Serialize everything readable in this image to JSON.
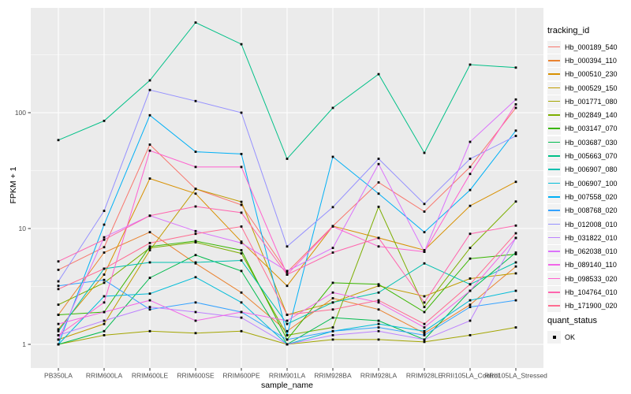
{
  "figure": {
    "background": "#FFFFFF",
    "panel_background": "#EBEBEB",
    "grid_color": "#FFFFFF",
    "tick_label_color": "#4D4D4D",
    "tick_mark_color": "#333333",
    "point_color": "#000000",
    "legend_key_background": "#F2F2F2"
  },
  "chart_data": {
    "type": "line",
    "title": "",
    "xlabel": "sample_name",
    "ylabel": "FPKM + 1",
    "y_scale": "log10",
    "ylim": [
      0.63,
      800
    ],
    "y_ticks": [
      1,
      10,
      100
    ],
    "y_tick_labels": [
      "1",
      "10",
      "100"
    ],
    "y_minor_ticks": [
      3.1623,
      31.623,
      316.23
    ],
    "grid": true,
    "legend_position": "right",
    "legend_title": "tracking_id",
    "legend2_title": "quant_status",
    "legend2_items": [
      {
        "label": "OK",
        "shape": "filled-square",
        "color": "#000000"
      }
    ],
    "point_shape": "filled-square",
    "categories": [
      "PB350LA",
      "RRIM600LA",
      "RRIM600LE",
      "RRIM600SE",
      "RRIM600PE",
      "RRIM901LA",
      "RRIM928BA",
      "RRIM928LA",
      "RRIM928LE",
      "RRII105LA_Control",
      "RRII105LA_Stressed"
    ],
    "series": [
      {
        "name": "Hb_000189_540",
        "color": "#F8766D",
        "values": [
          4.4,
          6.9,
          53,
          22,
          16,
          4.2,
          10.5,
          25,
          14,
          34,
          110
        ]
      },
      {
        "name": "Hb_000394_110",
        "color": "#EA8331",
        "values": [
          1.8,
          6.2,
          9.3,
          5.0,
          2.8,
          1.3,
          2.5,
          2.0,
          1.25,
          2.2,
          4.7
        ]
      },
      {
        "name": "Hb_000510_230",
        "color": "#D89000",
        "values": [
          1.35,
          4.0,
          27,
          20,
          7.7,
          3.2,
          10.5,
          8.3,
          6.5,
          15.7,
          25.3
        ]
      },
      {
        "name": "Hb_000529_150",
        "color": "#C09B00",
        "values": [
          1.1,
          1.5,
          6.5,
          22,
          17,
          1.8,
          2.3,
          3.2,
          2.6,
          3.7,
          4.1
        ]
      },
      {
        "name": "Hb_001771_080",
        "color": "#A3A500",
        "values": [
          1.0,
          1.2,
          1.3,
          1.25,
          1.3,
          1.0,
          1.1,
          1.1,
          1.05,
          1.2,
          1.4
        ]
      },
      {
        "name": "Hb_002849_140",
        "color": "#7CAE00",
        "values": [
          2.2,
          3.4,
          6.8,
          7.6,
          6.1,
          1.2,
          1.4,
          15.4,
          2.1,
          6.8,
          17.1
        ]
      },
      {
        "name": "Hb_003147_070",
        "color": "#39B600",
        "values": [
          1.8,
          1.9,
          7.0,
          7.8,
          6.5,
          1.1,
          3.4,
          3.3,
          1.9,
          5.5,
          6.0
        ]
      },
      {
        "name": "Hb_003687_030",
        "color": "#00BB4E",
        "values": [
          1.0,
          1.3,
          3.75,
          5.9,
          4.3,
          1.0,
          1.7,
          1.6,
          1.1,
          2.9,
          6.2
        ]
      },
      {
        "name": "Hb_005663_070",
        "color": "#00C087",
        "values": [
          58,
          85,
          190,
          600,
          390,
          40,
          110,
          215,
          45,
          260,
          245
        ]
      },
      {
        "name": "Hb_006907_080",
        "color": "#00C0AF",
        "values": [
          1.3,
          4.5,
          5.1,
          5.1,
          5.3,
          1.5,
          2.3,
          2.8,
          5.0,
          3.3,
          5.1
        ]
      },
      {
        "name": "Hb_006907_100",
        "color": "#00BCD8",
        "values": [
          1.0,
          2.6,
          2.74,
          3.8,
          2.3,
          1.0,
          1.3,
          1.5,
          1.3,
          2.4,
          2.9
        ]
      },
      {
        "name": "Hb_007558_020",
        "color": "#00B0F6",
        "values": [
          1.0,
          10.8,
          95,
          46,
          44,
          1.2,
          41.6,
          20,
          9.3,
          21.5,
          70
        ]
      },
      {
        "name": "Hb_008768_020",
        "color": "#35A2FF",
        "values": [
          3.2,
          3.6,
          2.0,
          2.3,
          1.9,
          1.1,
          1.3,
          1.4,
          1.2,
          2.1,
          2.4
        ]
      },
      {
        "name": "Hb_012008_010",
        "color": "#9590FF",
        "values": [
          3.5,
          14.2,
          157,
          126,
          100,
          7.0,
          15.3,
          40,
          16.3,
          40,
          63
        ]
      },
      {
        "name": "Hb_031822_010",
        "color": "#BC81FF",
        "values": [
          1.2,
          1.6,
          2.1,
          1.9,
          1.7,
          1.0,
          1.2,
          1.3,
          1.1,
          1.6,
          8.3
        ]
      },
      {
        "name": "Hb_062038_010",
        "color": "#DB72FB",
        "values": [
          1.1,
          8.4,
          12.9,
          9.5,
          7.5,
          4.3,
          6.8,
          36,
          6.3,
          56,
          130
        ]
      },
      {
        "name": "Hb_089140_110",
        "color": "#F265E8",
        "values": [
          1.5,
          1.9,
          2.4,
          1.6,
          1.9,
          1.6,
          2.8,
          2.3,
          1.4,
          2.9,
          8.3
        ]
      },
      {
        "name": "Hb_098533_020",
        "color": "#FF61CF",
        "values": [
          1.2,
          2.3,
          47,
          34,
          34,
          4.0,
          10.4,
          7.0,
          6.3,
          29.6,
          118
        ]
      },
      {
        "name": "Hb_104764_010",
        "color": "#FF65AE",
        "values": [
          5.2,
          8.0,
          12.9,
          15.5,
          13.7,
          4.0,
          6.2,
          8.3,
          2.3,
          9.0,
          10.6
        ]
      },
      {
        "name": "Hb_171900_020",
        "color": "#FF6C91",
        "values": [
          3.0,
          4.5,
          7.5,
          9.0,
          10.4,
          1.8,
          2.0,
          2.4,
          1.5,
          3.3,
          9.1
        ]
      }
    ]
  }
}
